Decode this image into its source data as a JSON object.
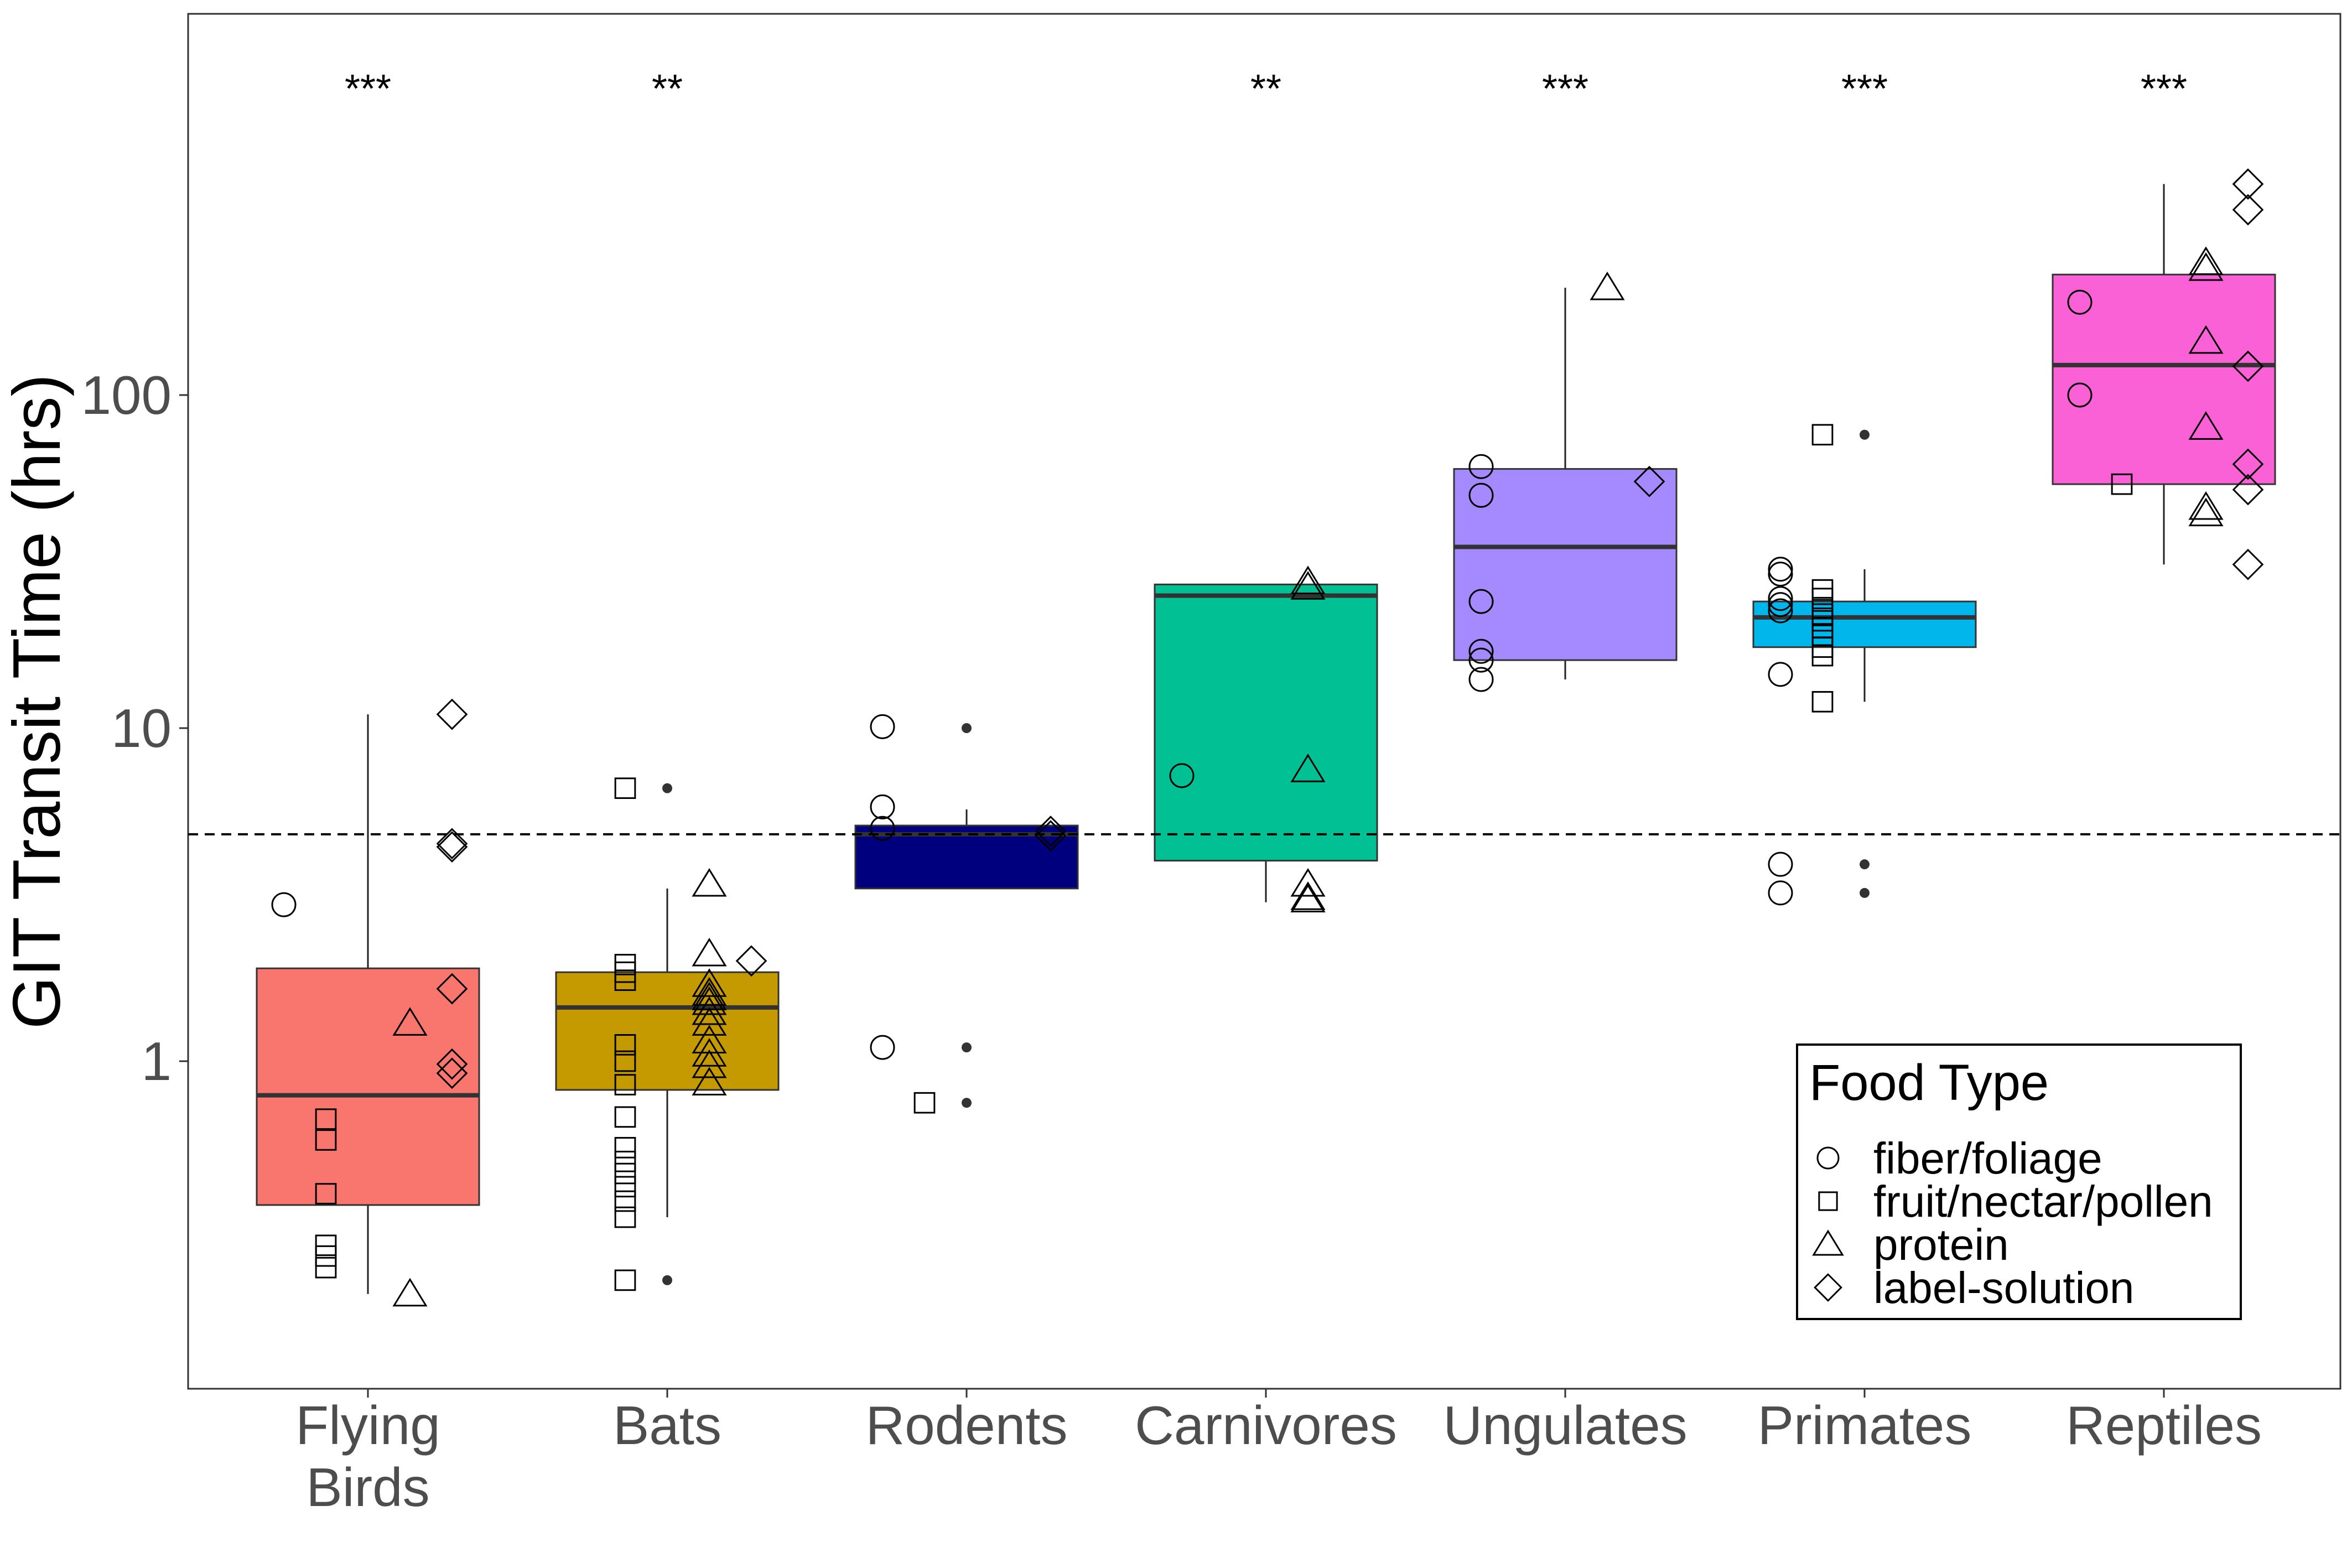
{
  "chart_data": {
    "type": "box",
    "ylabel": "GIT Transit Time (hrs)",
    "xlabel": "",
    "yscale": "log10",
    "ylim": [
      0.1,
      1000
    ],
    "yticks": [
      1,
      10,
      100
    ],
    "ytick_labels": [
      "1",
      "10",
      "100"
    ],
    "grid": false,
    "reference_line": {
      "value": 4.8,
      "style": "dashed"
    },
    "categories": [
      "Flying Birds",
      "Bats",
      "Rodents",
      "Carnivores",
      "Ungulates",
      "Primates",
      "Reptiles"
    ],
    "category_label_lines": [
      [
        "Flying",
        "Birds"
      ],
      [
        "Bats"
      ],
      [
        "Rodents"
      ],
      [
        "Carnivores"
      ],
      [
        "Ungulates"
      ],
      [
        "Primates"
      ],
      [
        "Reptiles"
      ]
    ],
    "significance": [
      "***",
      "**",
      "",
      "**",
      "***",
      "***",
      "***"
    ],
    "boxes": [
      {
        "category": "Flying Birds",
        "color": "#F8766D",
        "whisker_low": 0.2,
        "q1": 0.37,
        "median": 0.79,
        "q3": 1.9,
        "whisker_high": 11,
        "outliers": []
      },
      {
        "category": "Bats",
        "color": "#C49A00",
        "whisker_low": 0.34,
        "q1": 0.82,
        "median": 1.45,
        "q3": 1.85,
        "whisker_high": 3.3,
        "outliers": [
          6.6,
          0.22
        ]
      },
      {
        "category": "Rodents",
        "color": "#00007F",
        "whisker_low": 3.3,
        "q1": 3.3,
        "median": 4.8,
        "q3": 5.1,
        "whisker_high": 5.7,
        "outliers": [
          10,
          1.1,
          0.75
        ]
      },
      {
        "category": "Carnivores",
        "color": "#00C094",
        "whisker_low": 3.0,
        "q1": 4.0,
        "median": 25,
        "q3": 27,
        "whisker_high": 27,
        "outliers": []
      },
      {
        "category": "Ungulates",
        "color": "#A58AFF",
        "whisker_low": 14,
        "q1": 16,
        "median": 35,
        "q3": 60,
        "whisker_high": 210,
        "outliers": []
      },
      {
        "category": "Primates",
        "color": "#00B6EB",
        "whisker_low": 12,
        "q1": 17.5,
        "median": 21.5,
        "q3": 24,
        "whisker_high": 30,
        "outliers": [
          76,
          3.9,
          3.2
        ]
      },
      {
        "category": "Reptiles",
        "color": "#FB61D7",
        "whisker_low": 31,
        "q1": 54,
        "median": 123,
        "q3": 230,
        "whisker_high": 430,
        "outliers": []
      }
    ],
    "points": [
      {
        "group": 0,
        "food": "fiber/foliage",
        "y": 2.95
      },
      {
        "group": 0,
        "food": "fruit/nectar/pollen",
        "y": 0.67
      },
      {
        "group": 0,
        "food": "fruit/nectar/pollen",
        "y": 0.58
      },
      {
        "group": 0,
        "food": "fruit/nectar/pollen",
        "y": 0.4
      },
      {
        "group": 0,
        "food": "fruit/nectar/pollen",
        "y": 0.28
      },
      {
        "group": 0,
        "food": "fruit/nectar/pollen",
        "y": 0.26
      },
      {
        "group": 0,
        "food": "fruit/nectar/pollen",
        "y": 0.24
      },
      {
        "group": 0,
        "food": "protein",
        "y": 1.3
      },
      {
        "group": 0,
        "food": "protein",
        "y": 0.2
      },
      {
        "group": 0,
        "food": "label-solution",
        "y": 11
      },
      {
        "group": 0,
        "food": "label-solution",
        "y": 4.5
      },
      {
        "group": 0,
        "food": "label-solution",
        "y": 4.4
      },
      {
        "group": 0,
        "food": "label-solution",
        "y": 1.65
      },
      {
        "group": 0,
        "food": "label-solution",
        "y": 0.98
      },
      {
        "group": 0,
        "food": "label-solution",
        "y": 0.92
      },
      {
        "group": 1,
        "food": "fruit/nectar/pollen",
        "y": 6.6
      },
      {
        "group": 1,
        "food": "fruit/nectar/pollen",
        "y": 1.95
      },
      {
        "group": 1,
        "food": "fruit/nectar/pollen",
        "y": 1.85
      },
      {
        "group": 1,
        "food": "fruit/nectar/pollen",
        "y": 1.75
      },
      {
        "group": 1,
        "food": "fruit/nectar/pollen",
        "y": 1.12
      },
      {
        "group": 1,
        "food": "fruit/nectar/pollen",
        "y": 1.0
      },
      {
        "group": 1,
        "food": "fruit/nectar/pollen",
        "y": 0.85
      },
      {
        "group": 1,
        "food": "fruit/nectar/pollen",
        "y": 0.68
      },
      {
        "group": 1,
        "food": "fruit/nectar/pollen",
        "y": 0.55
      },
      {
        "group": 1,
        "food": "fruit/nectar/pollen",
        "y": 0.5
      },
      {
        "group": 1,
        "food": "fruit/nectar/pollen",
        "y": 0.46
      },
      {
        "group": 1,
        "food": "fruit/nectar/pollen",
        "y": 0.42
      },
      {
        "group": 1,
        "food": "fruit/nectar/pollen",
        "y": 0.38
      },
      {
        "group": 1,
        "food": "fruit/nectar/pollen",
        "y": 0.34
      },
      {
        "group": 1,
        "food": "fruit/nectar/pollen",
        "y": 0.22
      },
      {
        "group": 1,
        "food": "protein",
        "y": 3.4
      },
      {
        "group": 1,
        "food": "protein",
        "y": 2.1
      },
      {
        "group": 1,
        "food": "protein",
        "y": 1.7
      },
      {
        "group": 1,
        "food": "protein",
        "y": 1.6
      },
      {
        "group": 1,
        "food": "protein",
        "y": 1.55
      },
      {
        "group": 1,
        "food": "protein",
        "y": 1.5
      },
      {
        "group": 1,
        "food": "protein",
        "y": 1.4
      },
      {
        "group": 1,
        "food": "protein",
        "y": 1.3
      },
      {
        "group": 1,
        "food": "protein",
        "y": 1.15
      },
      {
        "group": 1,
        "food": "protein",
        "y": 1.05
      },
      {
        "group": 1,
        "food": "protein",
        "y": 0.97
      },
      {
        "group": 1,
        "food": "protein",
        "y": 0.86
      },
      {
        "group": 1,
        "food": "label-solution",
        "y": 2.0
      },
      {
        "group": 2,
        "food": "fiber/foliage",
        "y": 10.1
      },
      {
        "group": 2,
        "food": "fiber/foliage",
        "y": 5.8
      },
      {
        "group": 2,
        "food": "fiber/foliage",
        "y": 5.0
      },
      {
        "group": 2,
        "food": "fiber/foliage",
        "y": 1.1
      },
      {
        "group": 2,
        "food": "fruit/nectar/pollen",
        "y": 0.75
      },
      {
        "group": 2,
        "food": "label-solution",
        "y": 4.9
      },
      {
        "group": 2,
        "food": "label-solution",
        "y": 4.75
      },
      {
        "group": 3,
        "food": "fiber/foliage",
        "y": 7.2
      },
      {
        "group": 3,
        "food": "protein",
        "y": 27.5
      },
      {
        "group": 3,
        "food": "protein",
        "y": 26.5
      },
      {
        "group": 3,
        "food": "protein",
        "y": 7.5
      },
      {
        "group": 3,
        "food": "protein",
        "y": 3.4
      },
      {
        "group": 3,
        "food": "protein",
        "y": 3.1
      },
      {
        "group": 3,
        "food": "protein",
        "y": 3.05
      },
      {
        "group": 4,
        "food": "fiber/foliage",
        "y": 61
      },
      {
        "group": 4,
        "food": "fiber/foliage",
        "y": 50
      },
      {
        "group": 4,
        "food": "fiber/foliage",
        "y": 24
      },
      {
        "group": 4,
        "food": "fiber/foliage",
        "y": 17
      },
      {
        "group": 4,
        "food": "fiber/foliage",
        "y": 16
      },
      {
        "group": 4,
        "food": "fiber/foliage",
        "y": 14
      },
      {
        "group": 4,
        "food": "protein",
        "y": 210
      },
      {
        "group": 4,
        "food": "label-solution",
        "y": 55
      },
      {
        "group": 5,
        "food": "fiber/foliage",
        "y": 30
      },
      {
        "group": 5,
        "food": "fiber/foliage",
        "y": 29
      },
      {
        "group": 5,
        "food": "fiber/foliage",
        "y": 24.5
      },
      {
        "group": 5,
        "food": "fiber/foliage",
        "y": 23.5
      },
      {
        "group": 5,
        "food": "fiber/foliage",
        "y": 22.5
      },
      {
        "group": 5,
        "food": "fiber/foliage",
        "y": 14.5
      },
      {
        "group": 5,
        "food": "fiber/foliage",
        "y": 3.9
      },
      {
        "group": 5,
        "food": "fiber/foliage",
        "y": 3.2
      },
      {
        "group": 5,
        "food": "fruit/nectar/pollen",
        "y": 76
      },
      {
        "group": 5,
        "food": "fruit/nectar/pollen",
        "y": 26
      },
      {
        "group": 5,
        "food": "fruit/nectar/pollen",
        "y": 24.5
      },
      {
        "group": 5,
        "food": "fruit/nectar/pollen",
        "y": 23
      },
      {
        "group": 5,
        "food": "fruit/nectar/pollen",
        "y": 22
      },
      {
        "group": 5,
        "food": "fruit/nectar/pollen",
        "y": 21
      },
      {
        "group": 5,
        "food": "fruit/nectar/pollen",
        "y": 20
      },
      {
        "group": 5,
        "food": "fruit/nectar/pollen",
        "y": 19
      },
      {
        "group": 5,
        "food": "fruit/nectar/pollen",
        "y": 17.5
      },
      {
        "group": 5,
        "food": "fruit/nectar/pollen",
        "y": 16.5
      },
      {
        "group": 5,
        "food": "fruit/nectar/pollen",
        "y": 12
      },
      {
        "group": 6,
        "food": "fiber/foliage",
        "y": 190
      },
      {
        "group": 6,
        "food": "fiber/foliage",
        "y": 100
      },
      {
        "group": 6,
        "food": "fruit/nectar/pollen",
        "y": 54
      },
      {
        "group": 6,
        "food": "protein",
        "y": 250
      },
      {
        "group": 6,
        "food": "protein",
        "y": 240
      },
      {
        "group": 6,
        "food": "protein",
        "y": 145
      },
      {
        "group": 6,
        "food": "protein",
        "y": 80
      },
      {
        "group": 6,
        "food": "protein",
        "y": 46
      },
      {
        "group": 6,
        "food": "protein",
        "y": 44
      },
      {
        "group": 6,
        "food": "label-solution",
        "y": 430
      },
      {
        "group": 6,
        "food": "label-solution",
        "y": 360
      },
      {
        "group": 6,
        "food": "label-solution",
        "y": 122
      },
      {
        "group": 6,
        "food": "label-solution",
        "y": 62
      },
      {
        "group": 6,
        "food": "label-solution",
        "y": 52
      },
      {
        "group": 6,
        "food": "label-solution",
        "y": 31
      }
    ],
    "legend": {
      "title": "Food Type",
      "position": "bottom-right",
      "entries": [
        {
          "label": "fiber/foliage",
          "shape": "circle"
        },
        {
          "label": "fruit/nectar/pollen",
          "shape": "square"
        },
        {
          "label": "protein",
          "shape": "triangle"
        },
        {
          "label": "label-solution",
          "shape": "diamond"
        }
      ]
    }
  }
}
